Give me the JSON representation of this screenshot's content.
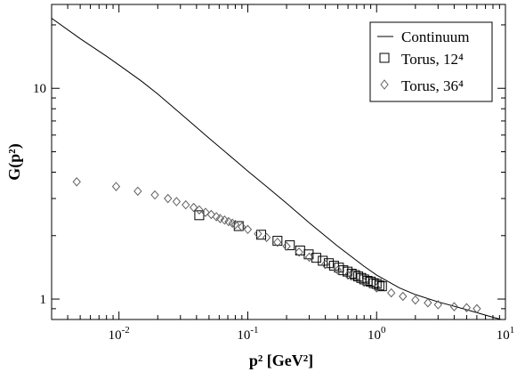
{
  "chart_data": {
    "type": "scatter",
    "title": "",
    "xlabel": "p² [GeV²]",
    "ylabel": "G(p²)",
    "xscale": "log",
    "yscale": "log",
    "xlim": [
      0.003,
      10
    ],
    "ylim": [
      0.8,
      25
    ],
    "grid": false,
    "legend": "top-right",
    "x_ticks": [
      {
        "value": 0.01,
        "base": "10",
        "exp": "-2"
      },
      {
        "value": 0.1,
        "base": "10",
        "exp": "-1"
      },
      {
        "value": 1,
        "base": "10",
        "exp": "0"
      },
      {
        "value": 10,
        "base": "10",
        "exp": "1"
      }
    ],
    "y_ticks": [
      {
        "value": 1,
        "label": "1"
      },
      {
        "value": 10,
        "label": "10"
      }
    ],
    "series": [
      {
        "name": "Continuum",
        "marker": "line",
        "color": "#000000",
        "x": [
          0.003,
          0.005,
          0.008,
          0.01,
          0.015,
          0.02,
          0.03,
          0.05,
          0.08,
          0.1,
          0.15,
          0.2,
          0.3,
          0.5,
          0.8,
          1,
          1.5,
          2,
          3,
          5,
          8,
          10
        ],
        "y": [
          21.5,
          17.2,
          14.2,
          12.9,
          10.8,
          9.4,
          7.6,
          5.8,
          4.55,
          4.05,
          3.3,
          2.85,
          2.3,
          1.78,
          1.43,
          1.3,
          1.13,
          1.05,
          0.97,
          0.89,
          0.82,
          0.79
        ]
      },
      {
        "name": "Torus, 12⁴",
        "marker": "square",
        "color": "#000000",
        "x": [
          0.042,
          0.085,
          0.127,
          0.17,
          0.212,
          0.255,
          0.297,
          0.34,
          0.382,
          0.425,
          0.467,
          0.51,
          0.552,
          0.595,
          0.64,
          0.68,
          0.72,
          0.76,
          0.8,
          0.85,
          0.9,
          0.95,
          1.0,
          1.05,
          1.1
        ],
        "y": [
          2.5,
          2.22,
          2.02,
          1.89,
          1.8,
          1.7,
          1.63,
          1.57,
          1.52,
          1.48,
          1.44,
          1.41,
          1.37,
          1.35,
          1.32,
          1.3,
          1.28,
          1.26,
          1.24,
          1.22,
          1.21,
          1.19,
          1.18,
          1.16,
          1.15
        ]
      },
      {
        "name": "Torus, 36⁴",
        "marker": "diamond",
        "color": "#606060",
        "x": [
          0.0047,
          0.0095,
          0.014,
          0.019,
          0.024,
          0.028,
          0.033,
          0.038,
          0.042,
          0.047,
          0.052,
          0.057,
          0.061,
          0.066,
          0.071,
          0.076,
          0.08,
          0.09,
          0.1,
          0.12,
          0.14,
          0.17,
          0.2,
          0.25,
          0.3,
          0.4,
          0.5,
          0.6,
          0.8,
          1.0,
          1.3,
          1.6,
          2.0,
          2.5,
          3.0,
          4.0,
          5.0,
          6.0
        ],
        "y": [
          3.6,
          3.42,
          3.25,
          3.12,
          3.0,
          2.9,
          2.8,
          2.72,
          2.65,
          2.58,
          2.52,
          2.46,
          2.41,
          2.37,
          2.33,
          2.29,
          2.26,
          2.2,
          2.14,
          2.04,
          1.96,
          1.86,
          1.78,
          1.67,
          1.58,
          1.46,
          1.37,
          1.3,
          1.2,
          1.13,
          1.07,
          1.03,
          0.99,
          0.96,
          0.94,
          0.92,
          0.91,
          0.9
        ]
      }
    ]
  }
}
